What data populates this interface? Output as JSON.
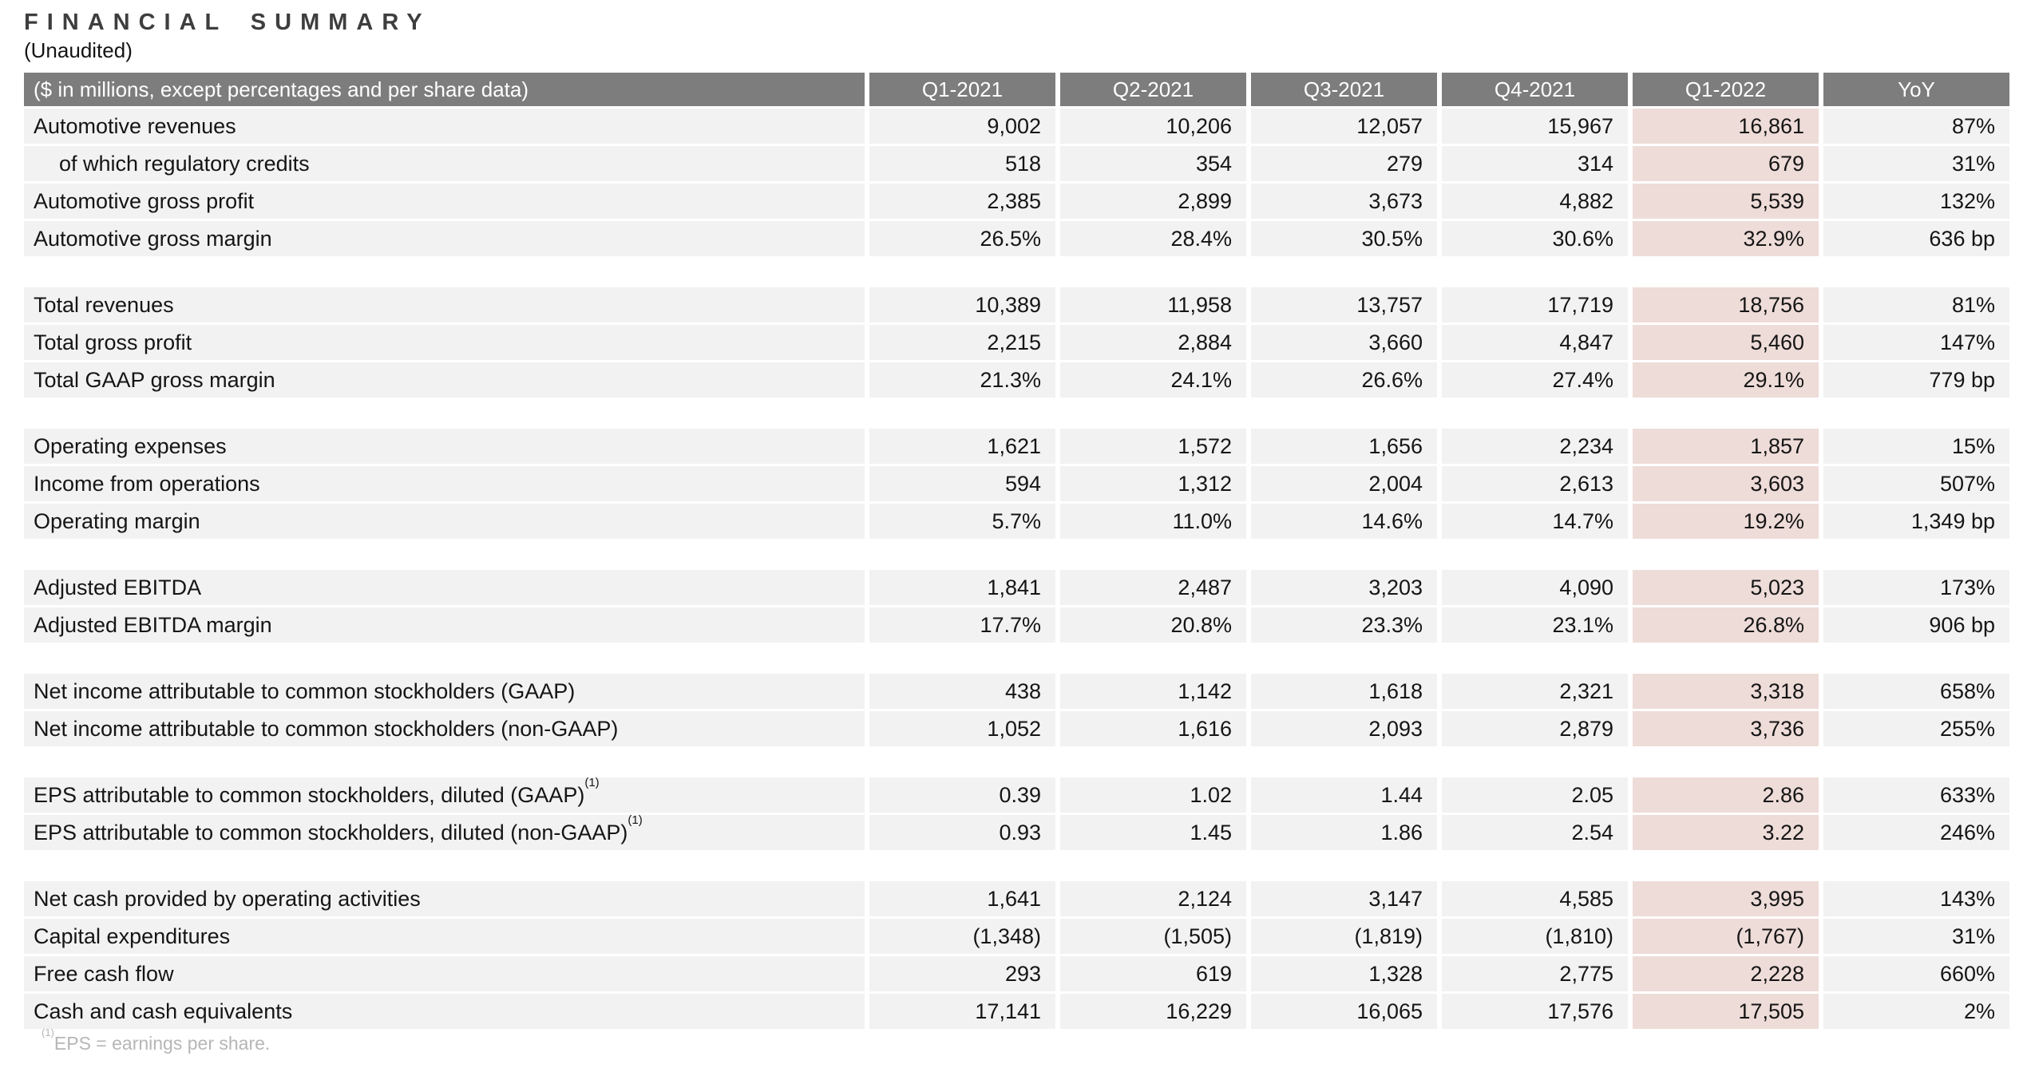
{
  "title": "FINANCIAL SUMMARY",
  "subtitle": "(Unaudited)",
  "footnote": {
    "sup": "(1)",
    "text": "EPS = earnings per share."
  },
  "colors": {
    "header_bg": "#7d7d7d",
    "row_bg": "#f2f2f2",
    "highlight_bg": "#eedcd8",
    "footnote_color": "#b6b6b6"
  },
  "table": {
    "header_label": "($ in millions, except percentages and per share data)",
    "columns": [
      "Q1-2021",
      "Q2-2021",
      "Q3-2021",
      "Q4-2021",
      "Q1-2022",
      "YoY"
    ],
    "highlight_column": "Q1-2022",
    "groups": [
      {
        "rows": [
          {
            "label": "Automotive revenues",
            "values": [
              "9,002",
              "10,206",
              "12,057",
              "15,967",
              "16,861",
              "87%"
            ]
          },
          {
            "label": "of which regulatory credits",
            "indent": true,
            "values": [
              "518",
              "354",
              "279",
              "314",
              "679",
              "31%"
            ]
          },
          {
            "label": "Automotive gross profit",
            "values": [
              "2,385",
              "2,899",
              "3,673",
              "4,882",
              "5,539",
              "132%"
            ]
          },
          {
            "label": "Automotive gross margin",
            "values": [
              "26.5%",
              "28.4%",
              "30.5%",
              "30.6%",
              "32.9%",
              "636 bp"
            ]
          }
        ]
      },
      {
        "rows": [
          {
            "label": "Total revenues",
            "values": [
              "10,389",
              "11,958",
              "13,757",
              "17,719",
              "18,756",
              "81%"
            ]
          },
          {
            "label": "Total gross profit",
            "values": [
              "2,215",
              "2,884",
              "3,660",
              "4,847",
              "5,460",
              "147%"
            ]
          },
          {
            "label": "Total GAAP gross margin",
            "values": [
              "21.3%",
              "24.1%",
              "26.6%",
              "27.4%",
              "29.1%",
              "779 bp"
            ]
          }
        ]
      },
      {
        "rows": [
          {
            "label": "Operating expenses",
            "values": [
              "1,621",
              "1,572",
              "1,656",
              "2,234",
              "1,857",
              "15%"
            ]
          },
          {
            "label": "Income from operations",
            "values": [
              "594",
              "1,312",
              "2,004",
              "2,613",
              "3,603",
              "507%"
            ]
          },
          {
            "label": "Operating margin",
            "values": [
              "5.7%",
              "11.0%",
              "14.6%",
              "14.7%",
              "19.2%",
              "1,349 bp"
            ]
          }
        ]
      },
      {
        "rows": [
          {
            "label": "Adjusted EBITDA",
            "values": [
              "1,841",
              "2,487",
              "3,203",
              "4,090",
              "5,023",
              "173%"
            ]
          },
          {
            "label": "Adjusted EBITDA margin",
            "values": [
              "17.7%",
              "20.8%",
              "23.3%",
              "23.1%",
              "26.8%",
              "906 bp"
            ]
          }
        ]
      },
      {
        "rows": [
          {
            "label": "Net income attributable to common stockholders (GAAP)",
            "values": [
              "438",
              "1,142",
              "1,618",
              "2,321",
              "3,318",
              "658%"
            ]
          },
          {
            "label": "Net income attributable to common stockholders (non-GAAP)",
            "values": [
              "1,052",
              "1,616",
              "2,093",
              "2,879",
              "3,736",
              "255%"
            ]
          }
        ]
      },
      {
        "rows": [
          {
            "label": "EPS attributable to common stockholders, diluted (GAAP)",
            "sup": "(1)",
            "values": [
              "0.39",
              "1.02",
              "1.44",
              "2.05",
              "2.86",
              "633%"
            ]
          },
          {
            "label": "EPS attributable to common stockholders, diluted (non-GAAP)",
            "sup": "(1)",
            "values": [
              "0.93",
              "1.45",
              "1.86",
              "2.54",
              "3.22",
              "246%"
            ]
          }
        ]
      },
      {
        "rows": [
          {
            "label": "Net cash provided by operating activities",
            "values": [
              "1,641",
              "2,124",
              "3,147",
              "4,585",
              "3,995",
              "143%"
            ]
          },
          {
            "label": "Capital expenditures",
            "values": [
              "(1,348)",
              "(1,505)",
              "(1,819)",
              "(1,810)",
              "(1,767)",
              "31%"
            ]
          },
          {
            "label": "Free cash flow",
            "values": [
              "293",
              "619",
              "1,328",
              "2,775",
              "2,228",
              "660%"
            ]
          },
          {
            "label": "Cash and cash equivalents",
            "values": [
              "17,141",
              "16,229",
              "16,065",
              "17,576",
              "17,505",
              "2%"
            ]
          }
        ]
      }
    ]
  }
}
